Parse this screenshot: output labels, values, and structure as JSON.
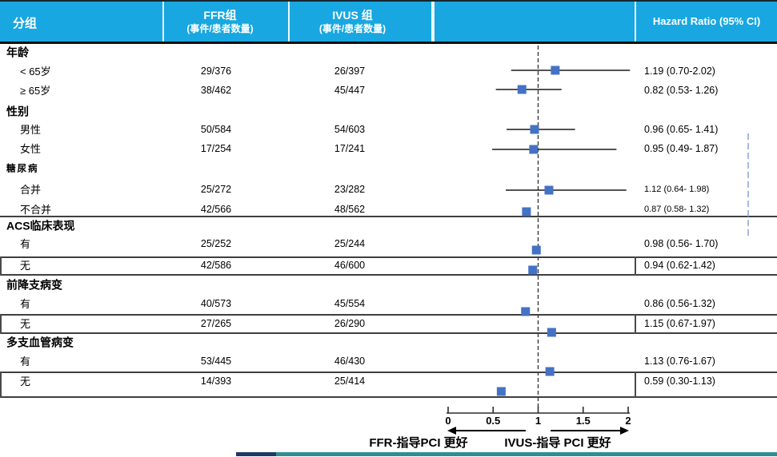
{
  "header": {
    "col_group": "分组",
    "col_ffr_line1": "FFR组",
    "col_ffr_line2": "(事件/患者数量)",
    "col_ivus_line1": "IVUS 组",
    "col_ivus_line2": "(事件/患者数量)",
    "col_hr": "Hazard Ratio (95% CI)"
  },
  "footer": {
    "left_arrow_label": "FFR-指导PCI 更好",
    "right_arrow_label": "IVUS-指导 PCI 更好"
  },
  "colors": {
    "header_blue": "#18A7E0",
    "marker_blue": "#4472C4",
    "annotation_blue": "#8FAADC",
    "line_dark": "#1a1a1a",
    "footer_navy": "#1F3864",
    "footer_teal": "#2F8F8F"
  },
  "chart_data": {
    "type": "forest",
    "title": "",
    "xlabel": "Hazard Ratio",
    "xlim": [
      0,
      2
    ],
    "reference_line": 1,
    "ticks": [
      0,
      0.5,
      1,
      1.5,
      2
    ],
    "tick_labels": [
      "0",
      "0.5",
      "1",
      "1.5",
      "2"
    ],
    "legend_left": "FFR-指导PCI 更好",
    "legend_right": "IVUS-指导 PCI 更好",
    "sections": [
      {
        "label": "年龄",
        "small": false,
        "rows": [
          {
            "label": "< 65岁",
            "ffr": "29/376",
            "ivus": "26/397",
            "hr": 1.19,
            "ci_low": 0.7,
            "ci_high": 2.02,
            "hr_text": "1.19 (0.70-2.02)",
            "show_ci": true,
            "boxed": false,
            "small": false
          },
          {
            "label": "≥ 65岁",
            "ffr": "38/462",
            "ivus": "45/447",
            "hr": 0.82,
            "ci_low": 0.53,
            "ci_high": 1.26,
            "hr_text": "0.82 (0.53- 1.26)",
            "show_ci": true,
            "boxed": false,
            "small": false
          }
        ]
      },
      {
        "label": "性别",
        "small": false,
        "rows": [
          {
            "label": "男性",
            "ffr": "50/584",
            "ivus": "54/603",
            "hr": 0.96,
            "ci_low": 0.65,
            "ci_high": 1.41,
            "hr_text": "0.96 (0.65- 1.41)",
            "show_ci": true,
            "boxed": false,
            "small": false
          },
          {
            "label": "女性",
            "ffr": "17/254",
            "ivus": "17/241",
            "hr": 0.95,
            "ci_low": 0.49,
            "ci_high": 1.87,
            "hr_text": "0.95 (0.49- 1.87)",
            "show_ci": true,
            "boxed": false,
            "small": false
          }
        ]
      },
      {
        "label": "糖尿病",
        "small": true,
        "rows": [
          {
            "label": "合并",
            "ffr": "25/272",
            "ivus": "23/282",
            "hr": 1.12,
            "ci_low": 0.64,
            "ci_high": 1.98,
            "hr_text": "1.12 (0.64- 1.98)",
            "show_ci": true,
            "boxed": false,
            "small": true
          },
          {
            "label": "不合并",
            "ffr": "42/566",
            "ivus": "48/562",
            "hr": 0.87,
            "ci_low": 0.58,
            "ci_high": 1.32,
            "hr_text": "0.87 (0.58- 1.32)",
            "show_ci": false,
            "boxed": false,
            "small": true
          }
        ]
      },
      {
        "label": "ACS临床表现",
        "small": false,
        "rows": [
          {
            "label": "有",
            "ffr": "25/252",
            "ivus": "25/244",
            "hr": 0.98,
            "ci_low": 0.56,
            "ci_high": 1.7,
            "hr_text": "0.98 (0.56- 1.70)",
            "show_ci": false,
            "boxed": false,
            "small": false
          },
          {
            "label": "无",
            "ffr": "42/586",
            "ivus": "46/600",
            "hr": 0.94,
            "ci_low": 0.62,
            "ci_high": 1.42,
            "hr_text": "0.94 (0.62-1.42)",
            "show_ci": false,
            "boxed": true,
            "small": false
          }
        ]
      },
      {
        "label": "前降支病变",
        "small": false,
        "rows": [
          {
            "label": "有",
            "ffr": "40/573",
            "ivus": "45/554",
            "hr": 0.86,
            "ci_low": 0.56,
            "ci_high": 1.32,
            "hr_text": "0.86 (0.56-1.32)",
            "show_ci": false,
            "boxed": false,
            "small": false
          },
          {
            "label": "无",
            "ffr": "27/265",
            "ivus": "26/290",
            "hr": 1.15,
            "ci_low": 0.67,
            "ci_high": 1.97,
            "hr_text": "1.15 (0.67-1.97)",
            "show_ci": false,
            "boxed": true,
            "small": false
          }
        ]
      },
      {
        "label": "多支血管病变",
        "small": false,
        "rows": [
          {
            "label": "有",
            "ffr": "53/445",
            "ivus": "46/430",
            "hr": 1.13,
            "ci_low": 0.76,
            "ci_high": 1.67,
            "hr_text": "1.13 (0.76-1.67)",
            "show_ci": false,
            "boxed": false,
            "small": false
          },
          {
            "label": "无",
            "ffr": "14/393",
            "ivus": "25/414",
            "hr": 0.59,
            "ci_low": 0.3,
            "ci_high": 1.13,
            "hr_text": "0.59 (0.30-1.13)",
            "show_ci": false,
            "boxed": true,
            "small": false
          }
        ]
      }
    ]
  }
}
